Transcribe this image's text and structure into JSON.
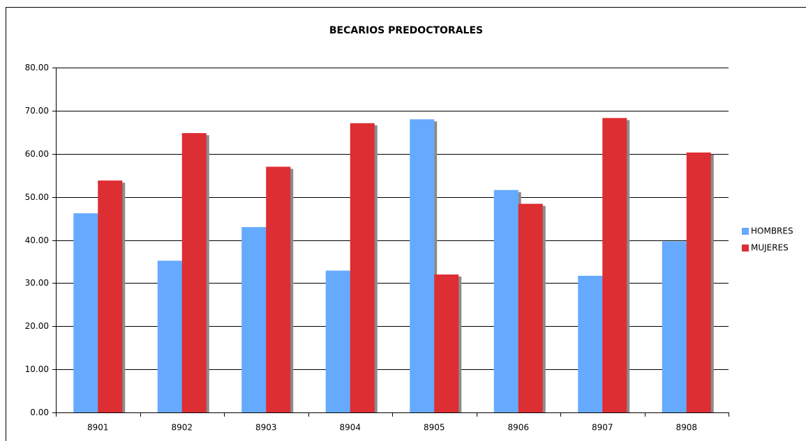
{
  "chart_data": {
    "type": "bar",
    "title": "BECARIOS PREDOCTORALES",
    "categories": [
      "8901",
      "8902",
      "8903",
      "8904",
      "8905",
      "8906",
      "8907",
      "8908"
    ],
    "series": [
      {
        "name": "HOMBRES",
        "color": "#66aaff",
        "values": [
          46.2,
          35.2,
          43.0,
          32.9,
          68.0,
          51.6,
          31.7,
          39.7
        ]
      },
      {
        "name": "MUJERES",
        "color": "#dd2e33",
        "values": [
          53.8,
          64.8,
          57.0,
          67.1,
          32.0,
          48.4,
          68.3,
          60.3
        ]
      }
    ],
    "ylim": [
      0,
      80
    ],
    "yticks": [
      {
        "value": 0,
        "label": "0.00"
      },
      {
        "value": 10,
        "label": "10.00"
      },
      {
        "value": 20,
        "label": "20.00"
      },
      {
        "value": 30,
        "label": "30.00"
      },
      {
        "value": 40,
        "label": "40.00"
      },
      {
        "value": 50,
        "label": "50.00"
      },
      {
        "value": 60,
        "label": "60.00"
      },
      {
        "value": 70,
        "label": "70.00"
      },
      {
        "value": 80,
        "label": "80.00"
      }
    ],
    "grid": true,
    "legend": "right"
  }
}
